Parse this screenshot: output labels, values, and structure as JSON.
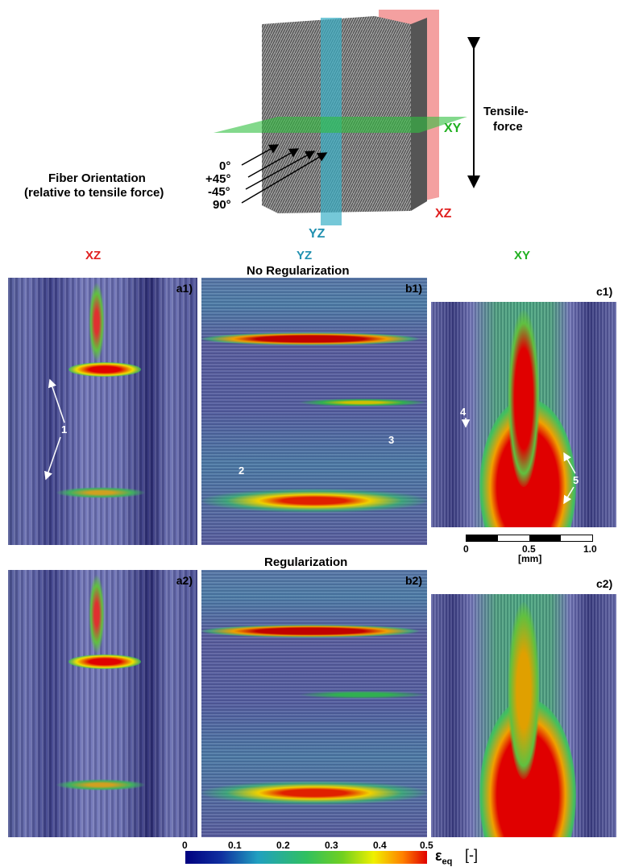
{
  "figure": {
    "tensile_label": [
      "Tensile-",
      "force"
    ],
    "planes": {
      "xy": "XY",
      "xz": "XZ",
      "yz": "YZ"
    },
    "fiber_orientation": {
      "title": "Fiber Orientation",
      "subtitle": "(relative to tensile force)",
      "angles": [
        "0°",
        "+45°",
        "-45°",
        "90°"
      ]
    },
    "columns": [
      "XZ",
      "YZ",
      "XY"
    ],
    "rows": [
      "No Regularization",
      "Regularization"
    ],
    "panels": [
      "a1)",
      "b1)",
      "c1)",
      "a2)",
      "b2)",
      "c2)"
    ],
    "annotations": [
      "1",
      "2",
      "3",
      "4",
      "5"
    ],
    "scale_bar": {
      "ticks": [
        "0",
        "0.5",
        "1.0"
      ],
      "unit": "[mm]"
    },
    "colorbar": {
      "ticks": [
        "0",
        "0.1",
        "0.2",
        "0.3",
        "0.4",
        "0.5"
      ],
      "symbol": "ε",
      "subscript": "eq",
      "unit": "[-]"
    }
  }
}
